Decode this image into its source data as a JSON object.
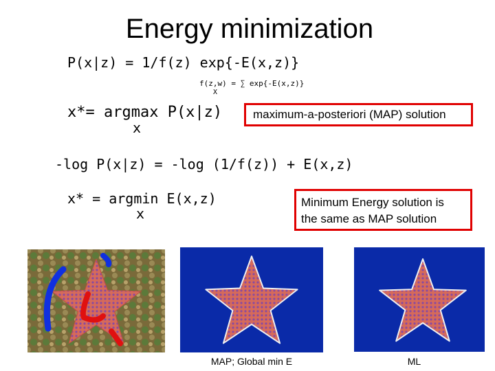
{
  "title": "Energy minimization",
  "equations": {
    "posterior": "P(x|z) = 1/f(z) exp{-E(x,z)}",
    "partition": {
      "text": "f(z,w) = ∑ exp{-E(x,z)}",
      "subscript": "X"
    },
    "map": {
      "text": "x*= argmax P(x|z)",
      "subscript": "x"
    },
    "neglog": "-log P(x|z) = -log (1/f(z)) + E(x,z)",
    "argmin": {
      "text": "x* = argmin E(x,z)",
      "subscript": "x"
    }
  },
  "boxes": [
    {
      "lines": [
        "maximum-a-posteriori (MAP) solution"
      ]
    },
    {
      "lines": [
        "Minimum Energy solution is",
        "the same as MAP solution"
      ]
    }
  ],
  "captions": [
    "MAP; Global min E",
    "ML"
  ]
}
